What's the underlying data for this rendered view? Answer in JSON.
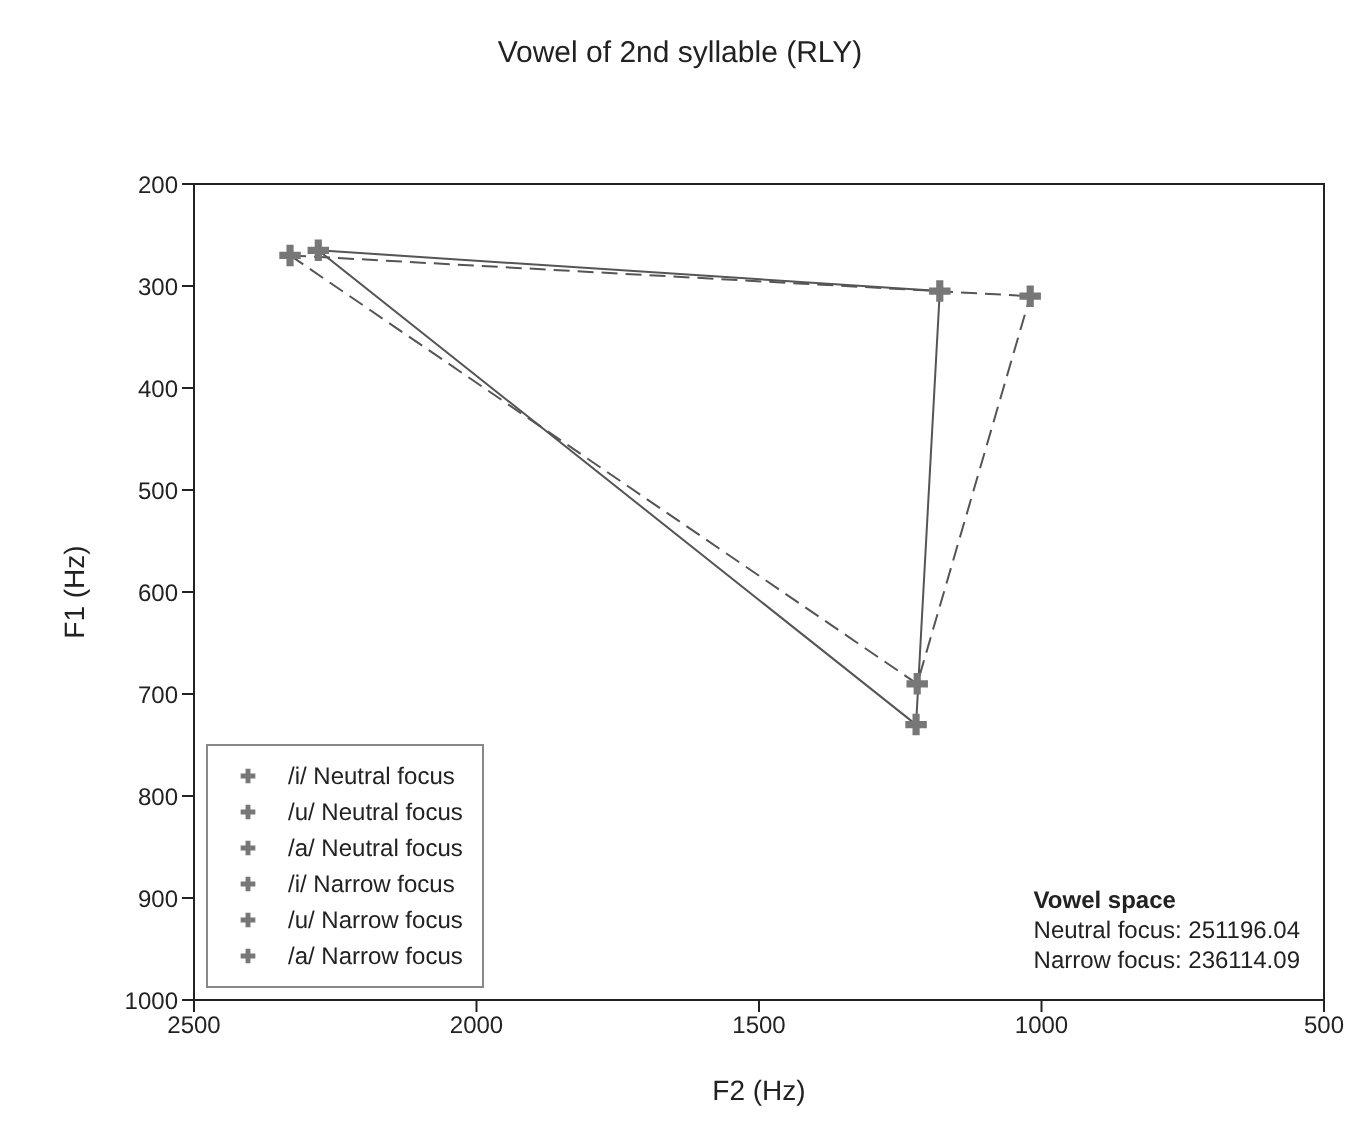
{
  "chart_data": {
    "type": "scatter",
    "title": "Vowel of 2nd syllable (RLY)",
    "xlabel": "F2 (Hz)",
    "ylabel": "F1 (Hz)",
    "xlim": [
      2500,
      500
    ],
    "xticks": [
      2500,
      2000,
      1500,
      1000,
      500
    ],
    "ylim": [
      1000,
      200
    ],
    "yticks": [
      200,
      300,
      400,
      500,
      600,
      700,
      800,
      900,
      1000
    ],
    "grid": false,
    "legend": "bottom left",
    "marker": "cross",
    "series": [
      {
        "type": "line",
        "line_style": "dashed",
        "marker": "none",
        "color": "#555555",
        "x": [
          2330,
          1220,
          1020
        ],
        "values": [
          270,
          690,
          310
        ]
      },
      {
        "type": "line",
        "line_style": "dashed",
        "marker": "none",
        "color": "#555555",
        "x": [
          2330,
          1020
        ],
        "values": [
          270,
          310
        ]
      },
      {
        "type": "line",
        "line_style": "solid",
        "marker": "none",
        "color": "#555555",
        "x": [
          2280,
          1222,
          1180
        ],
        "values": [
          265,
          730,
          305
        ]
      },
      {
        "type": "line",
        "line_style": "solid",
        "marker": "none",
        "color": "#555555",
        "x": [
          2280,
          1180
        ],
        "values": [
          265,
          305
        ]
      },
      {
        "name": "/i/ Neutral focus",
        "color": "#777777",
        "x": [
          2330
        ],
        "values": [
          270
        ]
      },
      {
        "name": "/u/ Neutral focus",
        "color": "#777777",
        "x": [
          1020
        ],
        "values": [
          310
        ]
      },
      {
        "name": "/a/ Neutral focus",
        "color": "#777777",
        "x": [
          1220
        ],
        "values": [
          690
        ]
      },
      {
        "name": "/i/ Narrow focus",
        "color": "#777777",
        "x": [
          2280
        ],
        "values": [
          265
        ]
      },
      {
        "name": "/u/ Narrow focus",
        "color": "#777777",
        "x": [
          1180
        ],
        "values": [
          305
        ]
      },
      {
        "name": "/a/ Narrow focus",
        "color": "#777777",
        "x": [
          1222
        ],
        "values": [
          730
        ]
      }
    ],
    "annotations": [
      "Vowel space",
      "Neutral focus: 251196.04",
      "Narrow focus: 236114.09"
    ]
  }
}
